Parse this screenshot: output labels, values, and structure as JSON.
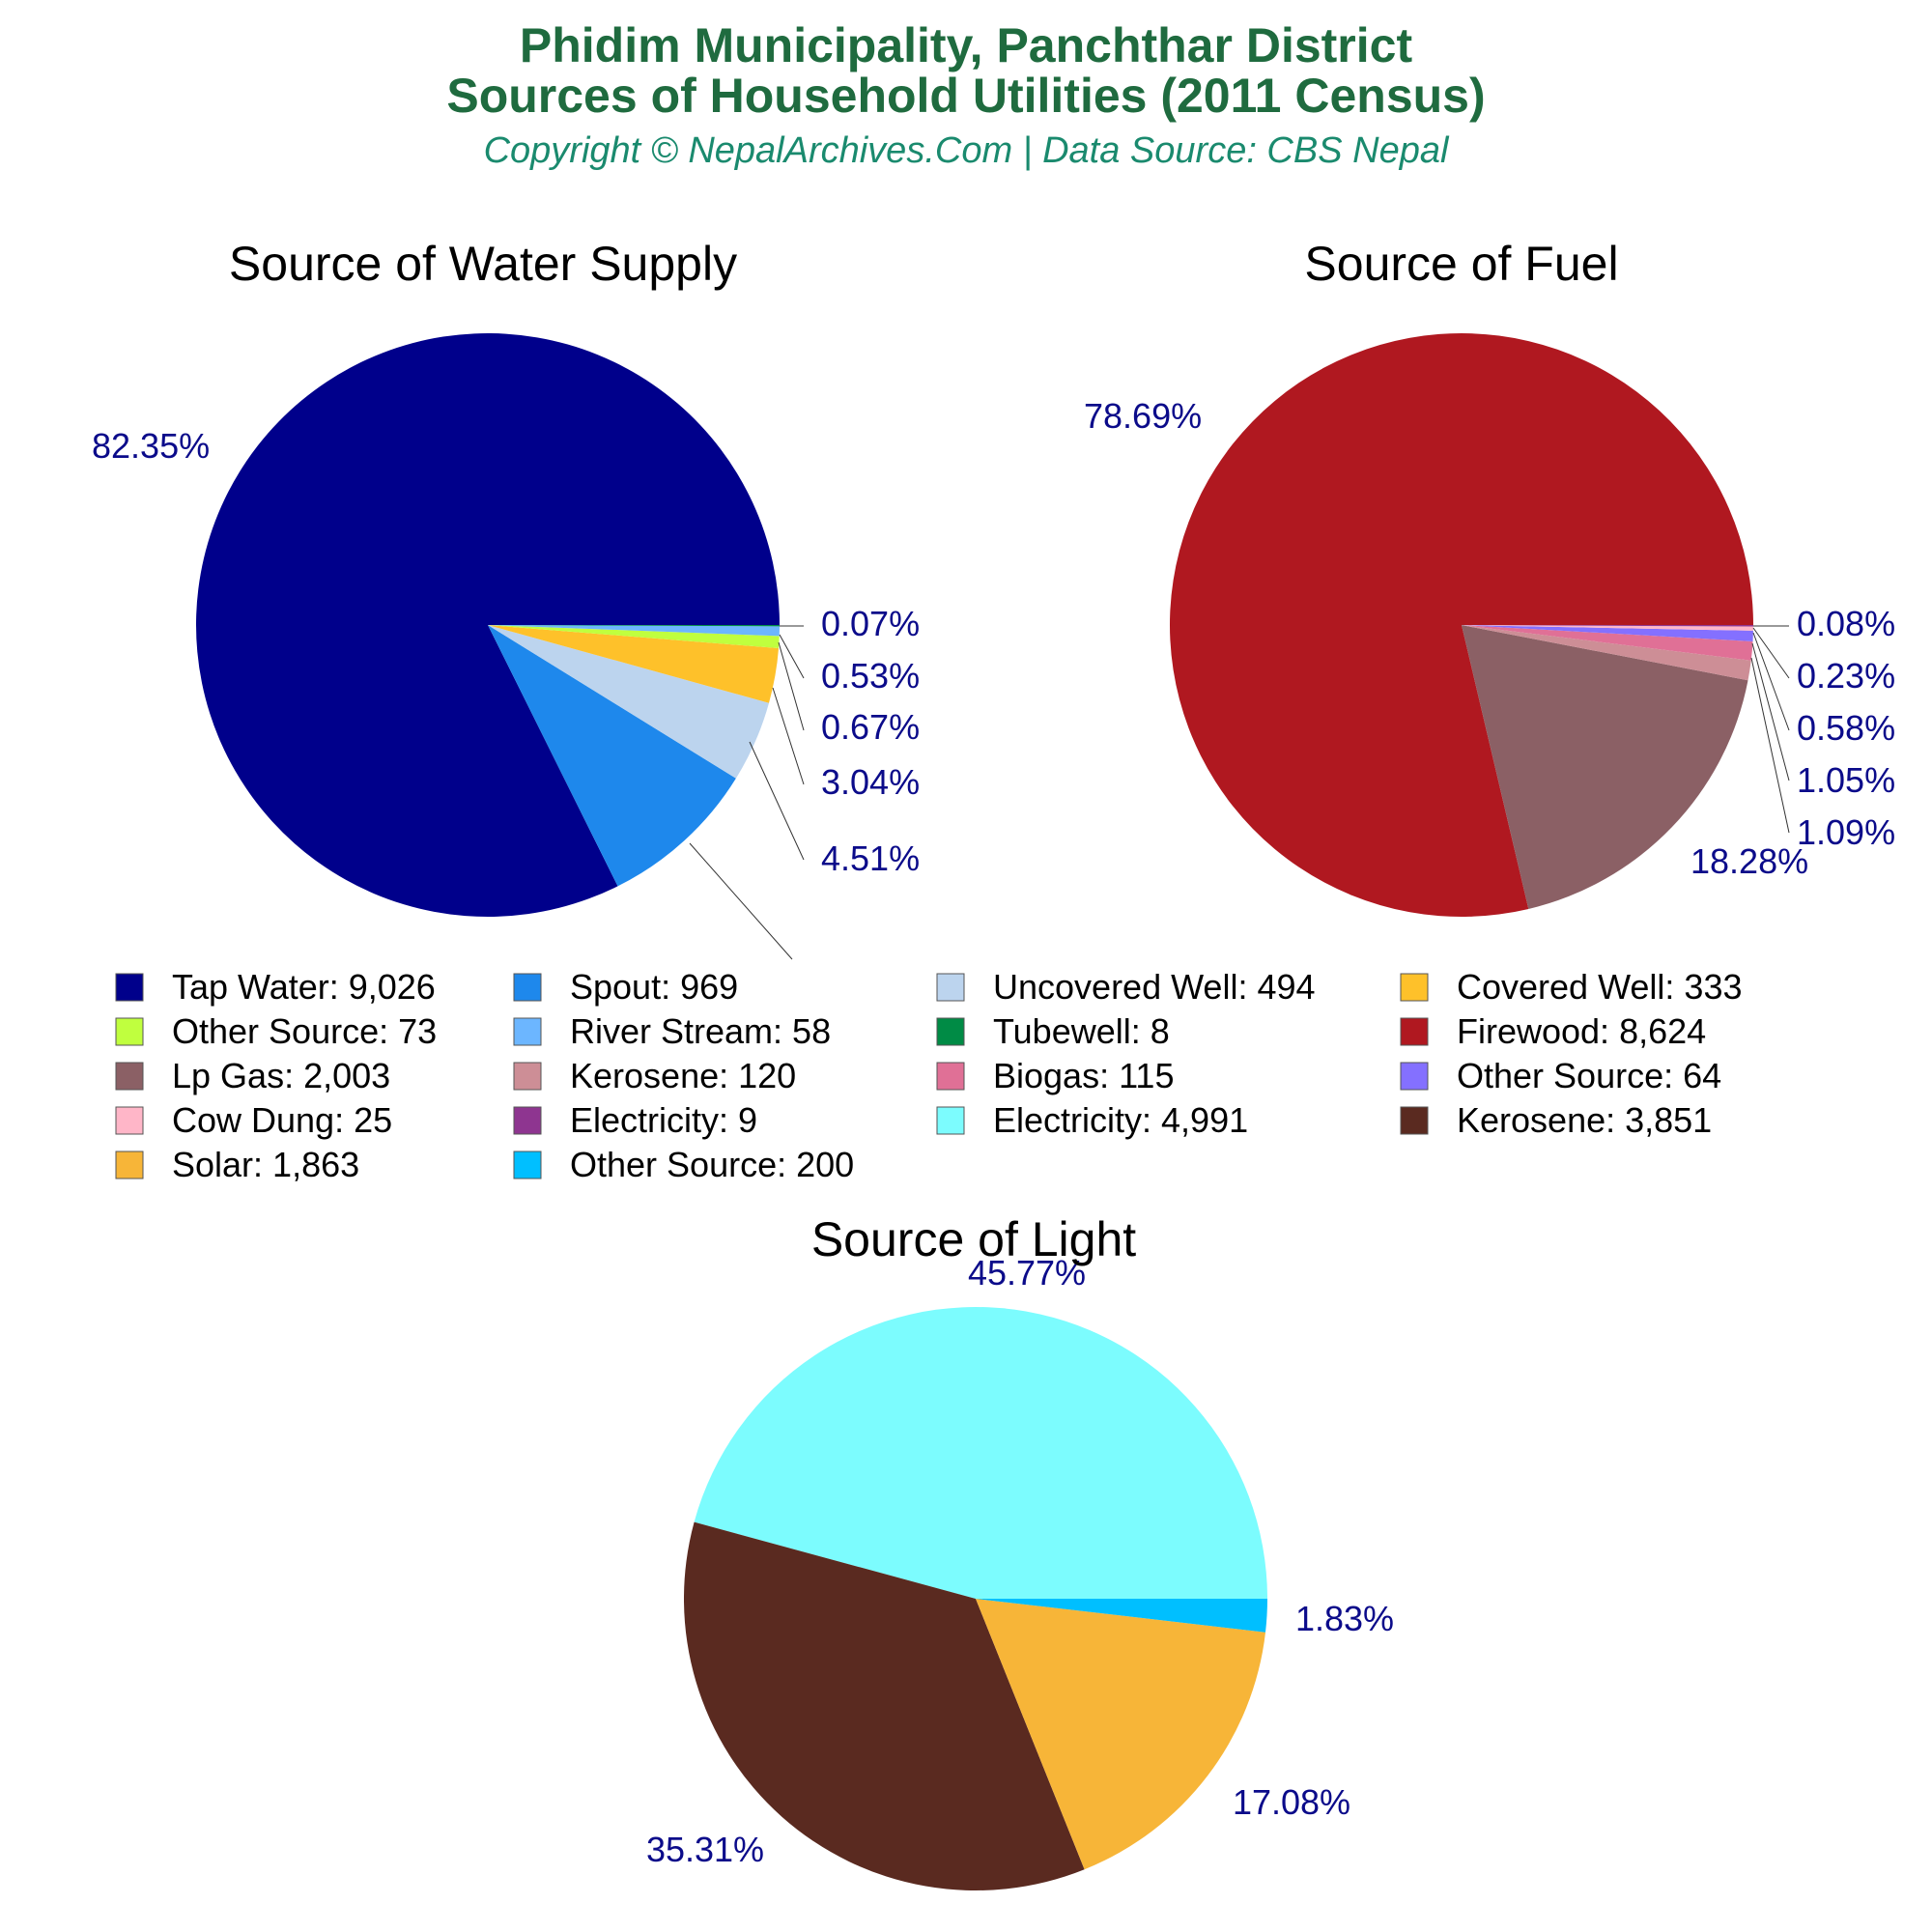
{
  "header": {
    "title_line1": "Phidim Municipality, Panchthar District",
    "title_line2": "Sources of Household Utilities (2011 Census)",
    "subtitle": "Copyright © NepalArchives.Com | Data Source: CBS Nepal"
  },
  "chart_data": [
    {
      "type": "pie",
      "title": "Source of Water Supply",
      "slices": [
        {
          "label": "Tap Water",
          "value": 9026,
          "percent_label": "82.35%",
          "color": "#00008b"
        },
        {
          "label": "Spout",
          "value": 969,
          "percent_label": "",
          "color": "#1e88ec"
        },
        {
          "label": "Uncovered Well",
          "value": 494,
          "percent_label": "4.51%",
          "color": "#bcd4ee"
        },
        {
          "label": "Covered Well",
          "value": 333,
          "percent_label": "3.04%",
          "color": "#fec12a"
        },
        {
          "label": "Other Source",
          "value": 73,
          "percent_label": "0.67%",
          "color": "#c0ff3e"
        },
        {
          "label": "River Stream",
          "value": 58,
          "percent_label": "0.53%",
          "color": "#6cb6ff"
        },
        {
          "label": "Tubewell",
          "value": 8,
          "percent_label": "0.07%",
          "color": "#008b45"
        }
      ]
    },
    {
      "type": "pie",
      "title": "Source of Fuel",
      "slices": [
        {
          "label": "Firewood",
          "value": 8624,
          "percent_label": "78.69%",
          "color": "#b01820"
        },
        {
          "label": "Lp Gas",
          "value": 2003,
          "percent_label": "18.28%",
          "color": "#8b6065"
        },
        {
          "label": "Kerosene",
          "value": 120,
          "percent_label": "1.09%",
          "color": "#cd8e96"
        },
        {
          "label": "Biogas",
          "value": 115,
          "percent_label": "1.05%",
          "color": "#e07096"
        },
        {
          "label": "Other Source",
          "value": 64,
          "percent_label": "0.58%",
          "color": "#8470ff"
        },
        {
          "label": "Cow Dung",
          "value": 25,
          "percent_label": "0.23%",
          "color": "#ffb6c8"
        },
        {
          "label": "Electricity",
          "value": 9,
          "percent_label": "0.08%",
          "color": "#8e3590"
        }
      ]
    },
    {
      "type": "pie",
      "title": "Source of Light",
      "slices": [
        {
          "label": "Electricity",
          "value": 4991,
          "percent_label": "45.77%",
          "color": "#7cfcfe"
        },
        {
          "label": "Kerosene",
          "value": 3851,
          "percent_label": "35.31%",
          "color": "#5a2a20"
        },
        {
          "label": "Solar",
          "value": 1863,
          "percent_label": "17.08%",
          "color": "#f7b538"
        },
        {
          "label": "Other Source",
          "value": 200,
          "percent_label": "1.83%",
          "color": "#00bfff"
        }
      ]
    }
  ],
  "legend": [
    {
      "text": "Tap Water: 9,026",
      "color": "#00008b"
    },
    {
      "text": "Spout: 969",
      "color": "#1e88ec"
    },
    {
      "text": "Uncovered Well: 494",
      "color": "#bcd4ee"
    },
    {
      "text": "Covered Well: 333",
      "color": "#fec12a"
    },
    {
      "text": "Other Source: 73",
      "color": "#c0ff3e"
    },
    {
      "text": "River Stream: 58",
      "color": "#6cb6ff"
    },
    {
      "text": "Tubewell: 8",
      "color": "#008b45"
    },
    {
      "text": "Firewood: 8,624",
      "color": "#b01820"
    },
    {
      "text": "Lp Gas: 2,003",
      "color": "#8b6065"
    },
    {
      "text": "Kerosene: 120",
      "color": "#cd8e96"
    },
    {
      "text": "Biogas: 115",
      "color": "#e07096"
    },
    {
      "text": "Other Source: 64",
      "color": "#8470ff"
    },
    {
      "text": "Cow Dung: 25",
      "color": "#ffb6c8"
    },
    {
      "text": "Electricity: 9",
      "color": "#8e3590"
    },
    {
      "text": "Electricity: 4,991",
      "color": "#7cfcfe"
    },
    {
      "text": "Kerosene: 3,851",
      "color": "#5a2a20"
    },
    {
      "text": "Solar: 1,863",
      "color": "#f7b538"
    },
    {
      "text": "Other Source: 200",
      "color": "#00bfff"
    }
  ]
}
